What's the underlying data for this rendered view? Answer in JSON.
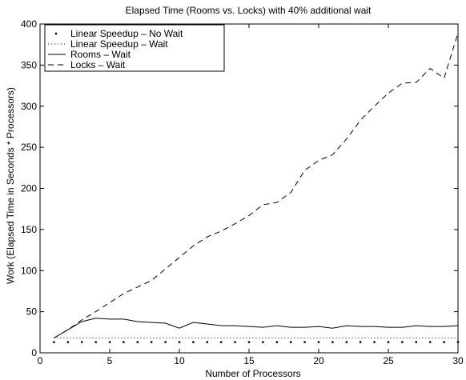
{
  "chart_data": {
    "type": "line",
    "title": "Elapsed Time (Rooms vs. Locks) with 40% additional wait",
    "xlabel": "Number of Processors",
    "ylabel": "Work (Elapsed Time in Seconds * Processors)",
    "xlim": [
      0,
      30
    ],
    "ylim": [
      0,
      400
    ],
    "xticks": [
      0,
      5,
      10,
      15,
      20,
      25,
      30
    ],
    "yticks": [
      0,
      50,
      100,
      150,
      200,
      250,
      300,
      350,
      400
    ],
    "grid": false,
    "legend_position": "top-left",
    "series": [
      {
        "name": "Linear Speedup – No Wait",
        "style": "dots",
        "x": [
          1,
          2,
          3,
          4,
          5,
          6,
          7,
          8,
          9,
          10,
          11,
          12,
          13,
          14,
          15,
          16,
          17,
          18,
          19,
          20,
          21,
          22,
          23,
          24,
          25,
          26,
          27,
          28,
          29,
          30
        ],
        "y": [
          13,
          13,
          13,
          13,
          13,
          13,
          13,
          13,
          13,
          13,
          13,
          13,
          13,
          13,
          13,
          13,
          13,
          13,
          13,
          13,
          13,
          13,
          13,
          13,
          13,
          13,
          13,
          13,
          13,
          13
        ]
      },
      {
        "name": "Linear Speedup – Wait",
        "style": "dotted",
        "x": [
          1,
          2,
          3,
          4,
          5,
          6,
          7,
          8,
          9,
          10,
          11,
          12,
          13,
          14,
          15,
          16,
          17,
          18,
          19,
          20,
          21,
          22,
          23,
          24,
          25,
          26,
          27,
          28,
          29,
          30
        ],
        "y": [
          18,
          18,
          18,
          18,
          18,
          18,
          18,
          18,
          18,
          18,
          18,
          18,
          18,
          18,
          18,
          18,
          18,
          18,
          18,
          18,
          18,
          18,
          18,
          18,
          18,
          18,
          18,
          18,
          18,
          18
        ]
      },
      {
        "name": "Rooms – Wait",
        "style": "solid",
        "x": [
          1,
          2,
          3,
          4,
          5,
          6,
          7,
          8,
          9,
          10,
          11,
          12,
          13,
          14,
          15,
          16,
          17,
          18,
          19,
          20,
          21,
          22,
          23,
          24,
          25,
          26,
          27,
          28,
          29,
          30
        ],
        "y": [
          18,
          28,
          38,
          42,
          41,
          41,
          38,
          37,
          36,
          30,
          37,
          35,
          33,
          33,
          32,
          31,
          33,
          31,
          31,
          32,
          30,
          33,
          32,
          32,
          31,
          31,
          33,
          32,
          32,
          33
        ]
      },
      {
        "name": "Locks – Wait",
        "style": "dashed",
        "x": [
          1,
          2,
          3,
          4,
          5,
          6,
          7,
          8,
          9,
          10,
          11,
          12,
          13,
          14,
          15,
          16,
          17,
          18,
          19,
          20,
          21,
          22,
          23,
          24,
          25,
          26,
          27,
          28,
          29,
          30
        ],
        "y": [
          18,
          28,
          40,
          50,
          61,
          72,
          80,
          88,
          102,
          116,
          130,
          141,
          148,
          157,
          167,
          180,
          183,
          195,
          222,
          234,
          241,
          260,
          283,
          300,
          316,
          328,
          329,
          346,
          334,
          389
        ]
      }
    ]
  }
}
